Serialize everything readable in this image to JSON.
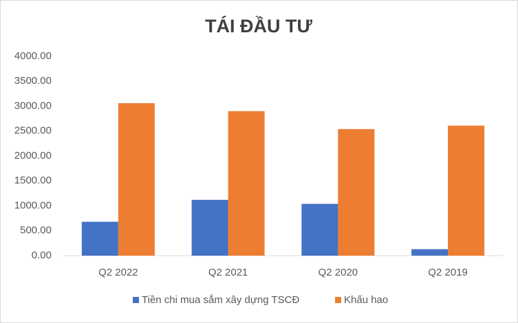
{
  "chart_data": {
    "type": "bar",
    "title": "TÁI ĐẦU TƯ",
    "categories": [
      "Q2 2022",
      "Q2 2021",
      "Q2 2020",
      "Q2 2019"
    ],
    "series": [
      {
        "name": "Tiền chi mua sắm xây dựng TSCĐ",
        "color": "#4472c4",
        "values": [
          680,
          1120,
          1040,
          130
        ]
      },
      {
        "name": "Khấu hao",
        "color": "#ed7d31",
        "values": [
          3060,
          2900,
          2540,
          2610
        ]
      }
    ],
    "ylim": [
      0,
      4000
    ],
    "yticks": [
      {
        "value": 0,
        "label": "0.00"
      },
      {
        "value": 500,
        "label": "500.00"
      },
      {
        "value": 1000,
        "label": "1000.00"
      },
      {
        "value": 1500,
        "label": "1500.00"
      },
      {
        "value": 2000,
        "label": "2000.00"
      },
      {
        "value": 2500,
        "label": "2500.00"
      },
      {
        "value": 3000,
        "label": "3000.00"
      },
      {
        "value": 3500,
        "label": "3500.00"
      },
      {
        "value": 4000,
        "label": "4000.00"
      }
    ],
    "grid": false,
    "legend": "bottom"
  }
}
